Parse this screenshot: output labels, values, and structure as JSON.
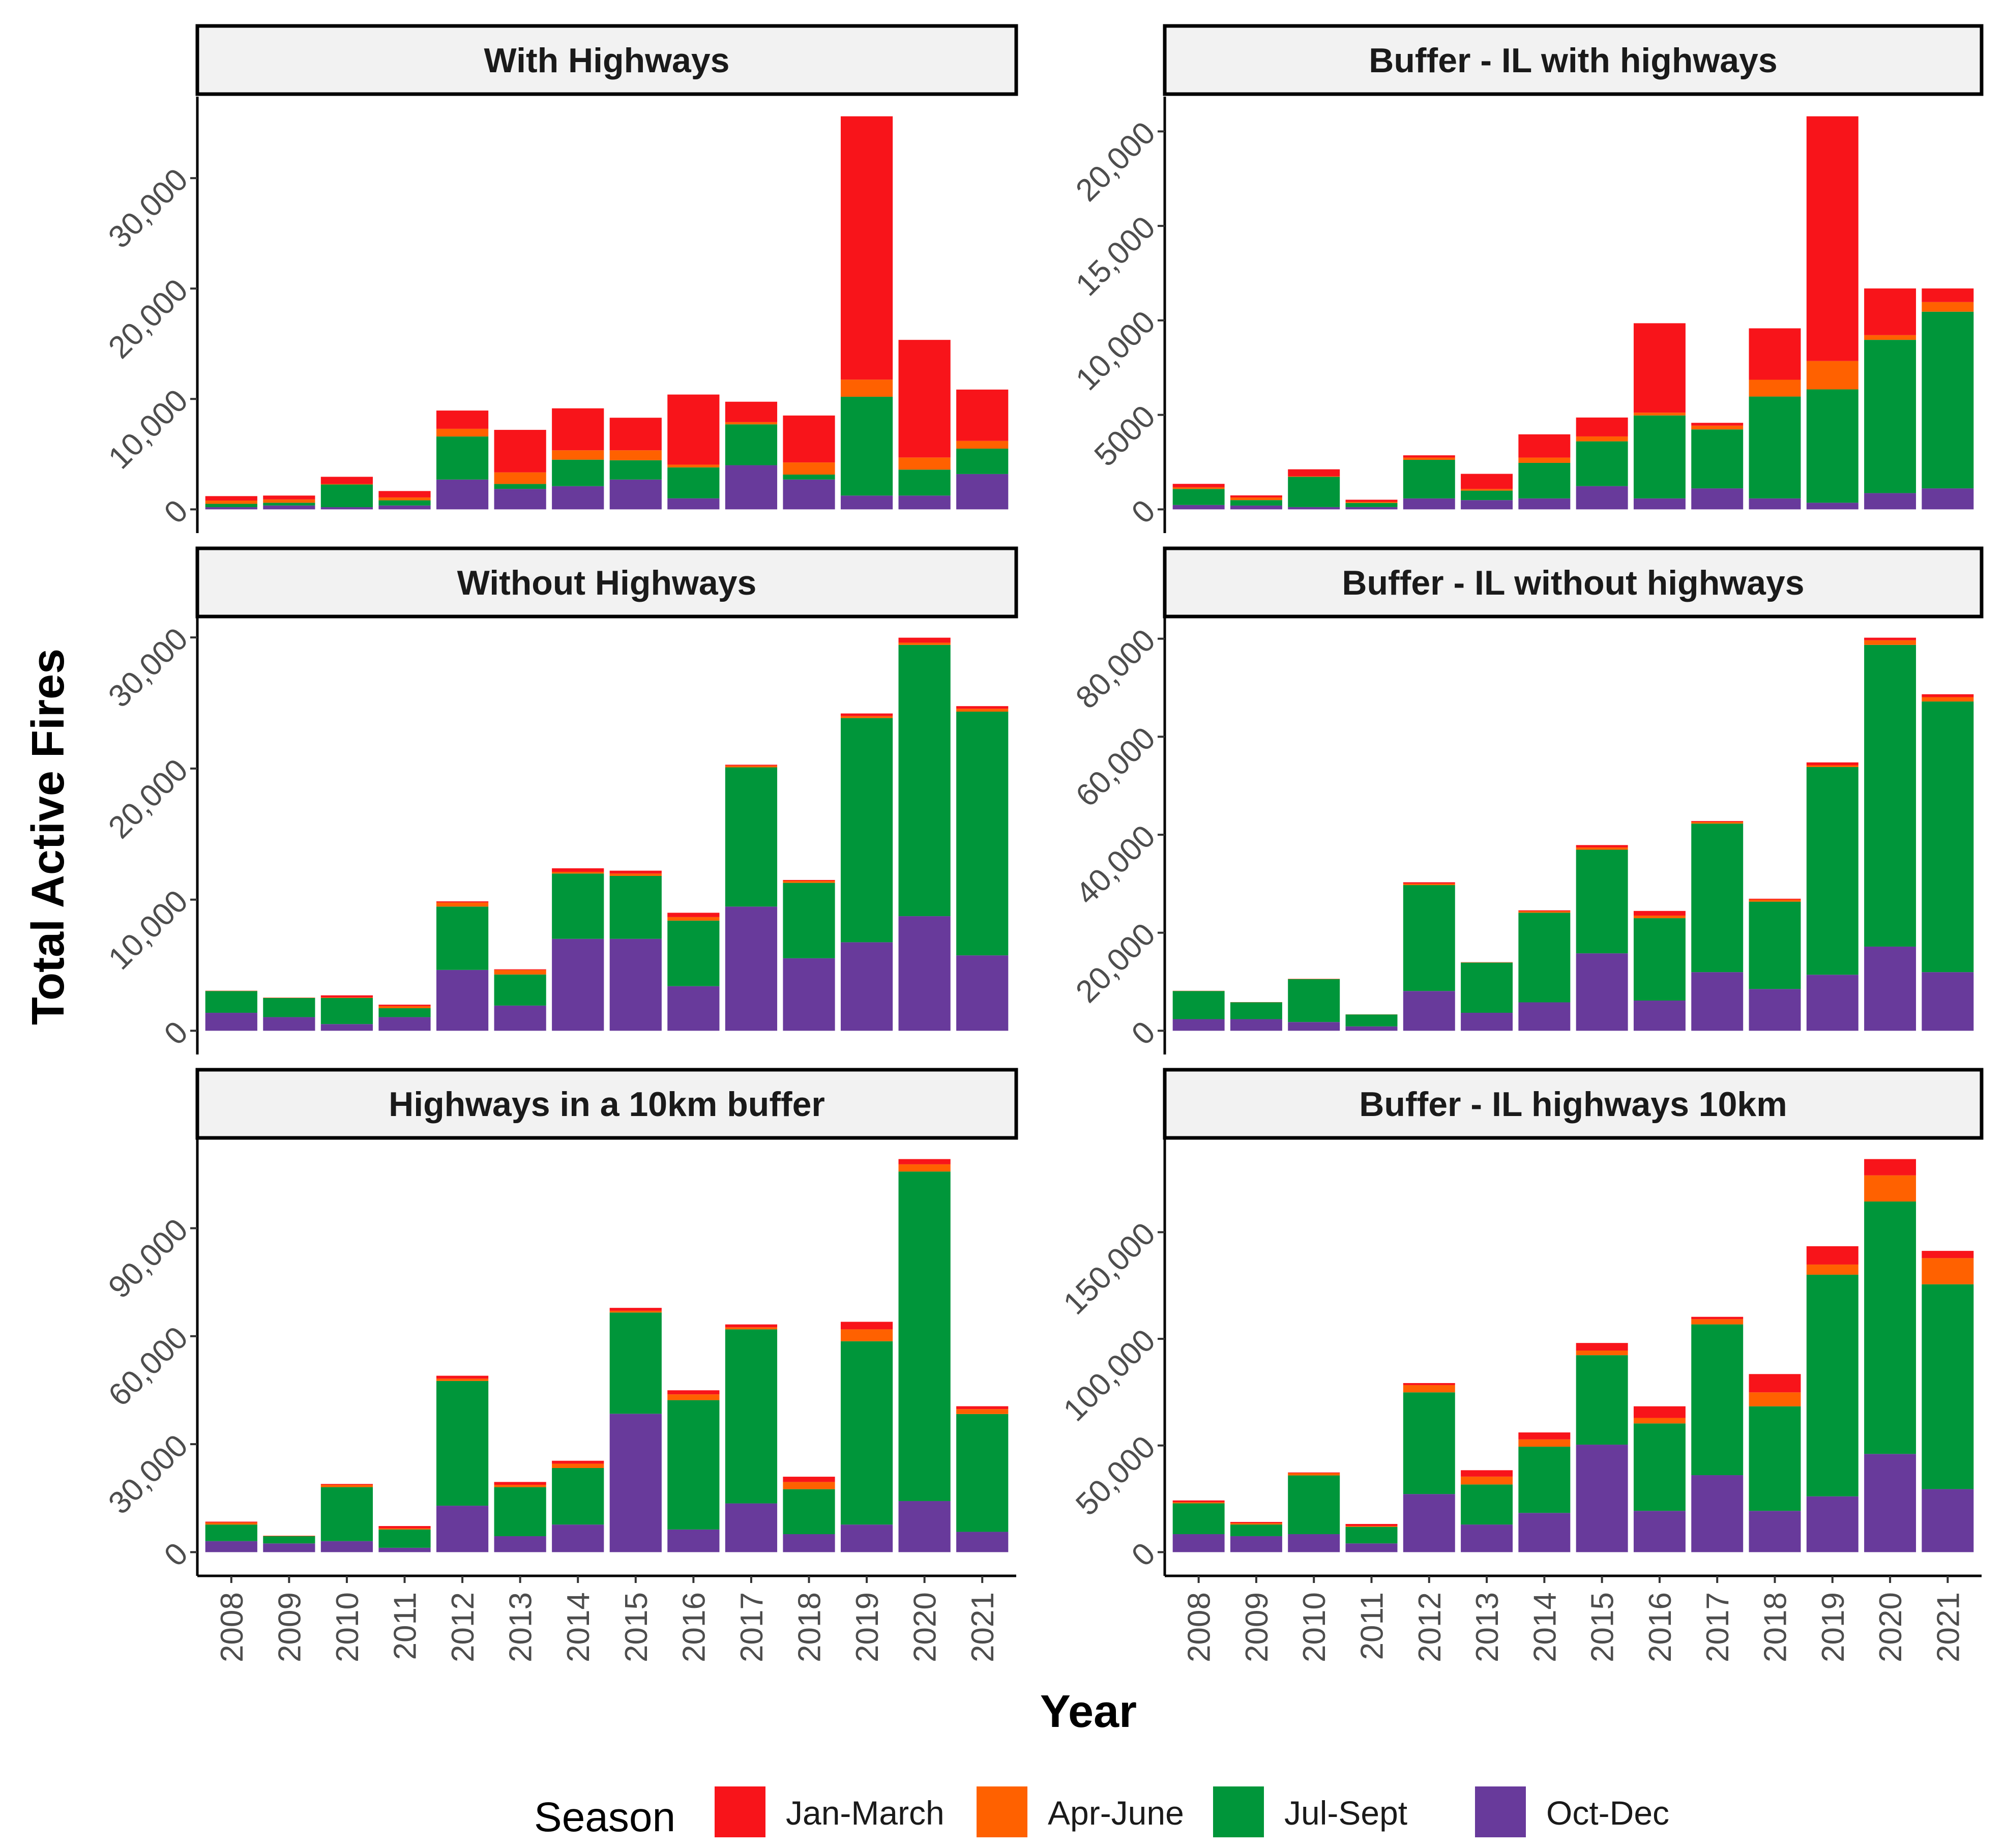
{
  "chart_data": {
    "type": "bar",
    "stacked": true,
    "xlabel": "Year",
    "ylabel": "Total Active Fires",
    "legend": {
      "title": "Season",
      "position": "bottom"
    },
    "categories": [
      "2008",
      "2009",
      "2010",
      "2011",
      "2012",
      "2013",
      "2014",
      "2015",
      "2016",
      "2017",
      "2018",
      "2019",
      "2020",
      "2021"
    ],
    "series_names": [
      "Jan-March",
      "Apr-June",
      "Jul-Sept",
      "Oct-Dec"
    ],
    "colors": {
      "Jan-March": "#F8141A",
      "Apr-June": "#FF6100",
      "Jul-Sept": "#00963A",
      "Oct-Dec": "#683A9B"
    },
    "panels": [
      {
        "title": "With Highways",
        "yticks": [
          0,
          10000,
          20000,
          30000
        ],
        "ytick_labels": [
          "0",
          "10,000",
          "20,000",
          "30,000"
        ],
        "series": [
          {
            "name": "Oct-Dec",
            "values": [
              200,
              350,
              200,
              350,
              2700,
              1850,
              2100,
              2700,
              1000,
              4000,
              2700,
              1250,
              1250,
              3200
            ]
          },
          {
            "name": "Jul-Sept",
            "values": [
              300,
              250,
              2050,
              470,
              3900,
              450,
              2400,
              1750,
              2800,
              3700,
              450,
              8950,
              2350,
              2300
            ]
          },
          {
            "name": "Apr-June",
            "values": [
              300,
              300,
              50,
              260,
              700,
              1050,
              850,
              900,
              250,
              200,
              1100,
              1550,
              1100,
              700
            ]
          },
          {
            "name": "Jan-March",
            "values": [
              400,
              350,
              650,
              580,
              1650,
              3850,
              3800,
              2950,
              6350,
              1850,
              4250,
              23850,
              10650,
              4650
            ]
          }
        ]
      },
      {
        "title": "Buffer - IL with highways",
        "yticks": [
          0,
          5000,
          10000,
          15000,
          20000
        ],
        "ytick_labels": [
          "0",
          "5000",
          "10,000",
          "15,000",
          "20,000"
        ],
        "series": [
          {
            "name": "Oct-Dec",
            "values": [
              230,
              200,
              120,
              120,
              580,
              490,
              580,
              1230,
              580,
              1110,
              580,
              350,
              860,
              1110
            ]
          },
          {
            "name": "Jul-Sept",
            "values": [
              850,
              290,
              1600,
              220,
              2040,
              500,
              1880,
              2370,
              4390,
              3120,
              5390,
              6000,
              8110,
              9350
            ]
          },
          {
            "name": "Apr-June",
            "values": [
              90,
              140,
              30,
              60,
              120,
              90,
              280,
              260,
              150,
              200,
              890,
              1500,
              250,
              510
            ]
          },
          {
            "name": "Jan-March",
            "values": [
              180,
              110,
              370,
              110,
              120,
              800,
              1230,
              1000,
              4730,
              150,
              2720,
              12950,
              2470,
              720
            ]
          }
        ]
      },
      {
        "title": "Without Highways",
        "yticks": [
          0,
          10000,
          20000,
          30000
        ],
        "ytick_labels": [
          "0",
          "10,000",
          "20,000",
          "30,000"
        ],
        "series": [
          {
            "name": "Oct-Dec",
            "values": [
              1370,
              1040,
              510,
              1040,
              4640,
              1920,
              7010,
              7010,
              3400,
              9470,
              5530,
              6750,
              8740,
              5750
            ]
          },
          {
            "name": "Jul-Sept",
            "values": [
              1660,
              1460,
              1990,
              680,
              4830,
              2370,
              4980,
              4800,
              5000,
              10620,
              5750,
              17100,
              20690,
              18590
            ]
          },
          {
            "name": "Apr-June",
            "values": [
              20,
              20,
              40,
              160,
              310,
              350,
              130,
              180,
              270,
              130,
              160,
              150,
              170,
              220
            ]
          },
          {
            "name": "Jan-March",
            "values": [
              10,
              10,
              160,
              110,
              90,
              50,
              270,
              220,
              330,
              70,
              60,
              200,
              380,
              200
            ]
          }
        ]
      },
      {
        "title": "Buffer - IL without highways",
        "yticks": [
          0,
          20000,
          40000,
          60000,
          80000
        ],
        "ytick_labels": [
          "0",
          "20,000",
          "40,000",
          "60,000",
          "80,000"
        ],
        "series": [
          {
            "name": "Oct-Dec",
            "values": [
              2370,
              2370,
              1780,
              890,
              8110,
              3670,
              5800,
              15800,
              6160,
              11960,
              8520,
              11430,
              17170,
              11960
            ]
          },
          {
            "name": "Jul-Sept",
            "values": [
              5740,
              3430,
              8760,
              2430,
              21610,
              10240,
              18290,
              21140,
              16810,
              30310,
              17820,
              42380,
              61570,
              55230
            ]
          },
          {
            "name": "Apr-June",
            "values": [
              30,
              30,
              40,
              20,
              290,
              60,
              300,
              470,
              530,
              350,
              420,
              360,
              940,
              890
            ]
          },
          {
            "name": "Jan-March",
            "values": [
              20,
              20,
              30,
              10,
              290,
              30,
              180,
              480,
              950,
              180,
              180,
              590,
              530,
              590
            ]
          }
        ]
      },
      {
        "title": "Highways in a 10km buffer",
        "yticks": [
          0,
          30000,
          60000,
          90000
        ],
        "ytick_labels": [
          "0",
          "30,000",
          "60,000",
          "90,000"
        ],
        "series": [
          {
            "name": "Oct-Dec",
            "values": [
              3060,
              2420,
              3060,
              1210,
              12900,
              4430,
              7660,
              38450,
              6290,
              13540,
              5000,
              7660,
              14190,
              5640
            ]
          },
          {
            "name": "Jul-Sept",
            "values": [
              4600,
              2010,
              15000,
              5080,
              34660,
              13630,
              15710,
              28130,
              35940,
              48360,
              12490,
              50940,
              91560,
              32730
            ]
          },
          {
            "name": "Apr-June",
            "values": [
              560,
              80,
              640,
              320,
              640,
              640,
              1210,
              480,
              1610,
              570,
              2010,
              3300,
              2010,
              1370
            ]
          },
          {
            "name": "Jan-March",
            "values": [
              250,
              60,
              240,
              640,
              810,
              800,
              810,
              810,
              1130,
              800,
              1460,
              2100,
              1450,
              800
            ]
          }
        ]
      },
      {
        "title": "Buffer - IL highways 10km",
        "yticks": [
          0,
          50000,
          100000,
          150000
        ],
        "ytick_labels": [
          "0",
          "50,000",
          "100,000",
          "150,000"
        ],
        "series": [
          {
            "name": "Oct-Dec",
            "values": [
              8440,
              7490,
              8440,
              4090,
              27240,
              12940,
              18390,
              50390,
              19340,
              36090,
              19340,
              26150,
              46040,
              29560
            ]
          },
          {
            "name": "Jul-Sept",
            "values": [
              14440,
              5450,
              27520,
              7760,
              47670,
              18790,
              31050,
              41950,
              41000,
              70690,
              49030,
              103920,
              118350,
              96020
            ]
          },
          {
            "name": "Apr-June",
            "values": [
              550,
              680,
              1090,
              410,
              3410,
              3680,
              3410,
              2180,
              2580,
              2450,
              6540,
              4770,
              12260,
              12260
            ]
          },
          {
            "name": "Jan-March",
            "values": [
              810,
              540,
              300,
              950,
              950,
              3000,
              3270,
              3540,
              5450,
              1090,
              8580,
              8580,
              7630,
              3400
            ]
          }
        ]
      }
    ]
  }
}
